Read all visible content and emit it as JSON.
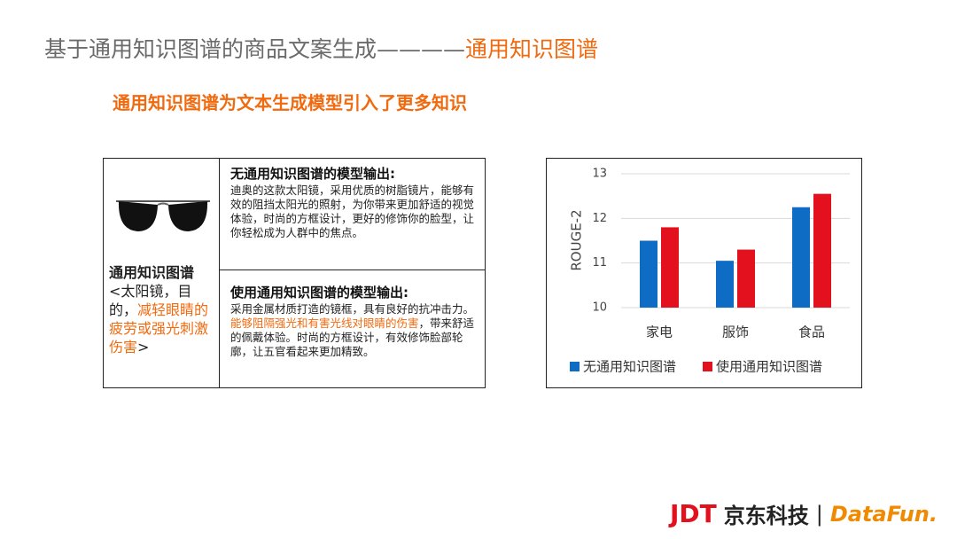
{
  "header": {
    "title": "基于通用知识图谱的商品文案生成————",
    "title_highlight": "通用知识图谱",
    "subtitle": "通用知识图谱为文本生成模型引入了更多知识"
  },
  "table": {
    "product": {
      "label": "通用知识图谱",
      "text_before": "<太阳镜，目的，",
      "text_highlight": "减轻眼睛的疲劳或强光刺激伤害",
      "text_after": ">"
    },
    "without_kg": {
      "heading": "无通用知识图谱的模型输出:",
      "body": "迪奥的这款太阳镜，采用优质的树脂镜片，能够有效的阻挡太阳光的照射，为你带来更加舒适的视觉体验，时尚的方框设计，更好的修饰你的脸型，让你轻松成为人群中的焦点。"
    },
    "with_kg": {
      "heading": "使用通用知识图谱的模型输出:",
      "body_before": "采用金属材质打造的镜框，具有良好的抗冲击力。",
      "body_highlight": "能够阻隔强光和有害光线对眼睛的伤害",
      "body_after": "，带来舒适的佩戴体验。时尚的方框设计，有效修饰脸部轮廓，让五官看起来更加精致。"
    }
  },
  "chart_data": {
    "type": "bar",
    "ylabel": "ROUGE-2",
    "categories": [
      "家电",
      "服饰",
      "食品"
    ],
    "series": [
      {
        "name": "无通用知识图谱",
        "color": "#0f6cc4",
        "values": [
          11.5,
          11.05,
          12.25
        ]
      },
      {
        "name": "使用通用知识图谱",
        "color": "#e3101e",
        "values": [
          11.8,
          11.3,
          12.55
        ]
      }
    ],
    "ylim": [
      10,
      13
    ],
    "yticks": [
      10,
      11,
      12,
      13
    ],
    "grid": true
  },
  "footer": {
    "logo_jdt": "JDT",
    "logo_cn": "京东科技",
    "logo_datafun": "DataFun."
  }
}
